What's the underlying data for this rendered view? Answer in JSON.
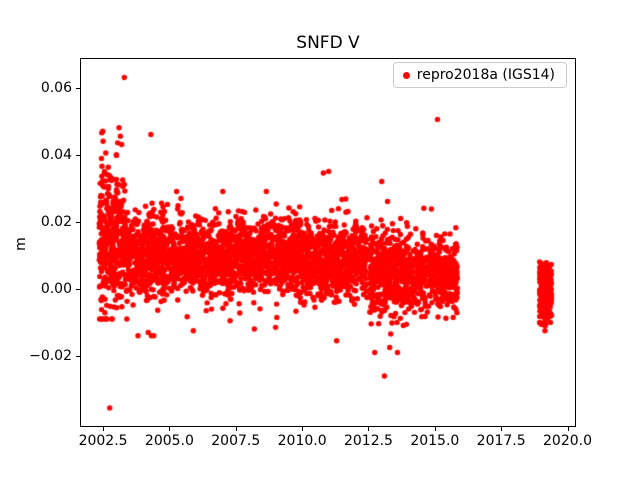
{
  "chart_data": {
    "type": "scatter",
    "title": "SNFD V",
    "xlabel": "",
    "ylabel": "m",
    "legend": {
      "label": "repro2018a (IGS14)",
      "position": "upper right"
    },
    "marker_color": "#ff0000",
    "marker_style": "dot",
    "grid": false,
    "xlim": [
      2001.63,
      2020.32
    ],
    "ylim": [
      -0.0412,
      0.0688
    ],
    "xticks": [
      2002.5,
      2005.0,
      2007.5,
      2010.0,
      2012.5,
      2015.0,
      2017.5,
      2020.0
    ],
    "xtick_labels": [
      "2002.5",
      "2005.0",
      "2007.5",
      "2010.0",
      "2012.5",
      "2015.0",
      "2017.5",
      "2020.0"
    ],
    "yticks": [
      -0.02,
      0.0,
      0.02,
      0.04,
      0.06
    ],
    "ytick_labels": [
      "−0.02",
      "0.00",
      "0.02",
      "0.04",
      "0.06"
    ],
    "seed": 20,
    "clusters": [
      {
        "x0": 2002.35,
        "x1": 2002.78,
        "n": 170,
        "mean": 0.016,
        "sd": 0.0105,
        "tail": 0.05,
        "ymin": -0.009,
        "ymax": 0.047
      },
      {
        "x0": 2002.78,
        "x1": 2003.4,
        "n": 210,
        "mean": 0.014,
        "sd": 0.009,
        "tail": 0.05,
        "ymin": -0.009,
        "ymax": 0.046
      },
      {
        "x0": 2003.4,
        "x1": 2005.0,
        "n": 480,
        "mean": 0.01,
        "sd": 0.006,
        "tail": 0.04,
        "ymin": -0.014,
        "ymax": 0.03
      },
      {
        "x0": 2005.0,
        "x1": 2007.5,
        "n": 700,
        "mean": 0.0095,
        "sd": 0.0052,
        "tail": 0.04,
        "ymin": -0.012,
        "ymax": 0.029
      },
      {
        "x0": 2007.5,
        "x1": 2010.0,
        "n": 700,
        "mean": 0.0095,
        "sd": 0.0052,
        "tail": 0.04,
        "ymin": -0.013,
        "ymax": 0.029
      },
      {
        "x0": 2010.0,
        "x1": 2012.45,
        "n": 650,
        "mean": 0.0085,
        "sd": 0.0052,
        "tail": 0.04,
        "ymin": -0.015,
        "ymax": 0.027
      },
      {
        "x0": 2012.55,
        "x1": 2014.0,
        "n": 430,
        "mean": 0.005,
        "sd": 0.0062,
        "tail": 0.05,
        "ymin": -0.019,
        "ymax": 0.026
      },
      {
        "x0": 2014.0,
        "x1": 2015.85,
        "n": 430,
        "mean": 0.0045,
        "sd": 0.0052,
        "tail": 0.04,
        "ymin": -0.014,
        "ymax": 0.024
      },
      {
        "x0": 2018.95,
        "x1": 2019.4,
        "n": 280,
        "mean": -0.0015,
        "sd": 0.0045,
        "tail": 0.0,
        "ymin": -0.0125,
        "ymax": 0.008
      }
    ],
    "outliers": [
      [
        2003.3,
        0.063
      ],
      [
        2015.1,
        0.0505
      ],
      [
        2002.75,
        -0.0355
      ],
      [
        2013.1,
        -0.026
      ],
      [
        2013.0,
        0.032
      ],
      [
        2010.8,
        0.0345
      ],
      [
        2011.0,
        0.035
      ],
      [
        2002.45,
        0.0465
      ],
      [
        2002.5,
        0.044
      ],
      [
        2002.6,
        0.0405
      ],
      [
        2003.05,
        0.0435
      ],
      [
        2003.1,
        0.048
      ],
      [
        2003.15,
        0.0455
      ],
      [
        2003.2,
        0.043
      ],
      [
        2004.3,
        0.046
      ],
      [
        2003.0,
        0.04
      ],
      [
        2002.55,
        0.0345
      ],
      [
        2011.3,
        -0.0155
      ],
      [
        2013.3,
        -0.0175
      ],
      [
        2004.2,
        -0.013
      ],
      [
        2005.9,
        -0.0125
      ],
      [
        2008.2,
        -0.012
      ],
      [
        2009.0,
        -0.0115
      ]
    ]
  }
}
